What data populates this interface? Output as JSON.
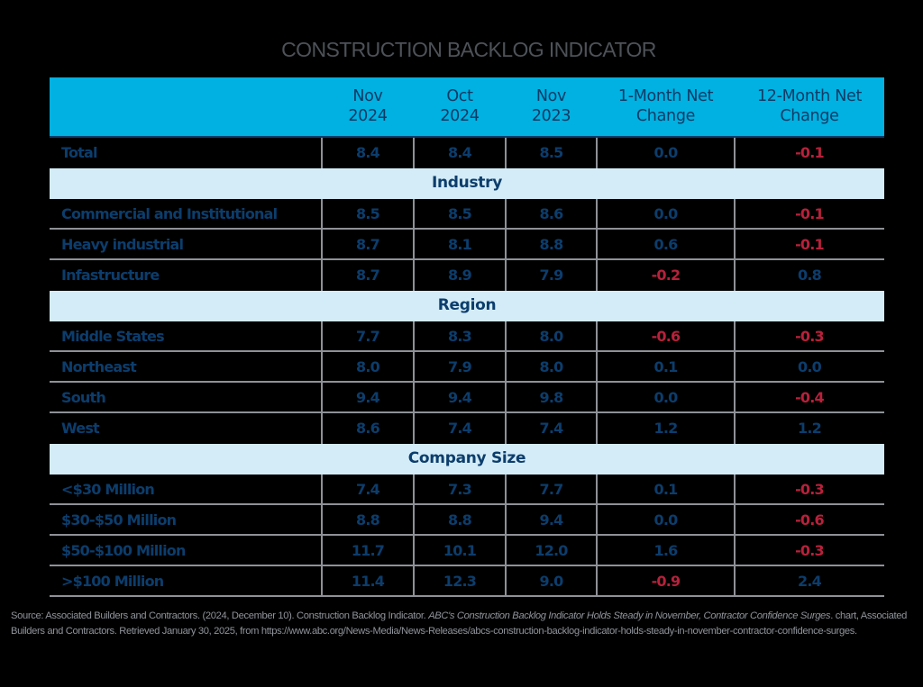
{
  "title": "CONSTRUCTION BACKLOG INDICATOR",
  "header": {
    "col1": [
      "Nov",
      "2024"
    ],
    "col2": [
      "Oct",
      "2024"
    ],
    "col3": [
      "Nov",
      "2023"
    ],
    "col4": [
      "1-Month Net",
      "Change"
    ],
    "col5": [
      "12-Month Net",
      "Change"
    ]
  },
  "colors": {
    "header_bg": "#00b1e1",
    "band_bg": "#d3ecf7",
    "text_navy": "#0c3d6c",
    "negative_red": "#b8213b",
    "grid_gray": "#8e9197"
  },
  "total": {
    "label": "Total",
    "values": [
      "8.4",
      "8.4",
      "8.5",
      "0.0",
      "-0.1"
    ]
  },
  "sections": [
    {
      "title": "Industry",
      "rows": [
        {
          "label": "Commercial and Institutional",
          "values": [
            "8.5",
            "8.5",
            "8.6",
            "0.0",
            "-0.1"
          ]
        },
        {
          "label": "Heavy industrial",
          "values": [
            "8.7",
            "8.1",
            "8.8",
            "0.6",
            "-0.1"
          ]
        },
        {
          "label": "Infastructure",
          "values": [
            "8.7",
            "8.9",
            "7.9",
            "-0.2",
            "0.8"
          ]
        }
      ]
    },
    {
      "title": "Region",
      "rows": [
        {
          "label": "Middle States",
          "values": [
            "7.7",
            "8.3",
            "8.0",
            "-0.6",
            "-0.3"
          ]
        },
        {
          "label": "Northeast",
          "values": [
            "8.0",
            "7.9",
            "8.0",
            "0.1",
            "0.0"
          ]
        },
        {
          "label": "South",
          "values": [
            "9.4",
            "9.4",
            "9.8",
            "0.0",
            "-0.4"
          ]
        },
        {
          "label": "West",
          "values": [
            "8.6",
            "7.4",
            "7.4",
            "1.2",
            "1.2"
          ]
        }
      ]
    },
    {
      "title": "Company Size",
      "rows": [
        {
          "label": "<$30 Million",
          "values": [
            "7.4",
            "7.3",
            "7.7",
            "0.1",
            "-0.3"
          ]
        },
        {
          "label": "$30-$50 Million",
          "values": [
            "8.8",
            "8.8",
            "9.4",
            "0.0",
            "-0.6"
          ]
        },
        {
          "label": "$50-$100 Million",
          "values": [
            "11.7",
            "10.1",
            "12.0",
            "1.6",
            "-0.3"
          ]
        },
        {
          "label": ">$100 Million",
          "values": [
            "11.4",
            "12.3",
            "9.0",
            "-0.9",
            "2.4"
          ]
        }
      ]
    }
  ],
  "source": {
    "part1": "Source: Associated Builders and Contractors. (2024, December 10). Construction Backlog Indicator. ",
    "italic": "ABC's Construction Backlog Indicator Holds Steady in November, Contractor Confidence Surges",
    "part2": ". chart, Associated Builders and Contractors. Retrieved January 30, 2025, from https://www.abc.org/News-Media/News-Releases/abcs-construction-backlog-indicator-holds-steady-in-november-contractor-confidence-surges."
  },
  "chart_data": {
    "type": "table",
    "title": "CONSTRUCTION BACKLOG INDICATOR",
    "columns": [
      "",
      "Nov 2024",
      "Oct 2024",
      "Nov 2023",
      "1-Month Net Change",
      "12-Month Net Change"
    ],
    "rows": [
      {
        "group": "",
        "label": "Total",
        "values": [
          8.4,
          8.4,
          8.5,
          0.0,
          -0.1
        ]
      },
      {
        "group": "Industry",
        "label": "Commercial and Institutional",
        "values": [
          8.5,
          8.5,
          8.6,
          0.0,
          -0.1
        ]
      },
      {
        "group": "Industry",
        "label": "Heavy industrial",
        "values": [
          8.7,
          8.1,
          8.8,
          0.6,
          -0.1
        ]
      },
      {
        "group": "Industry",
        "label": "Infastructure",
        "values": [
          8.7,
          8.9,
          7.9,
          -0.2,
          0.8
        ]
      },
      {
        "group": "Region",
        "label": "Middle States",
        "values": [
          7.7,
          8.3,
          8.0,
          -0.6,
          -0.3
        ]
      },
      {
        "group": "Region",
        "label": "Northeast",
        "values": [
          8.0,
          7.9,
          8.0,
          0.1,
          0.0
        ]
      },
      {
        "group": "Region",
        "label": "South",
        "values": [
          9.4,
          9.4,
          9.8,
          0.0,
          -0.4
        ]
      },
      {
        "group": "Region",
        "label": "West",
        "values": [
          8.6,
          7.4,
          7.4,
          1.2,
          1.2
        ]
      },
      {
        "group": "Company Size",
        "label": "<$30 Million",
        "values": [
          7.4,
          7.3,
          7.7,
          0.1,
          -0.3
        ]
      },
      {
        "group": "Company Size",
        "label": "$30-$50 Million",
        "values": [
          8.8,
          8.8,
          9.4,
          0.0,
          -0.6
        ]
      },
      {
        "group": "Company Size",
        "label": "$50-$100 Million",
        "values": [
          11.7,
          10.1,
          12.0,
          1.6,
          -0.3
        ]
      },
      {
        "group": "Company Size",
        "label": ">$100 Million",
        "values": [
          11.4,
          12.3,
          9.0,
          -0.9,
          2.4
        ]
      }
    ],
    "legend": "Negative changes shown in red"
  }
}
